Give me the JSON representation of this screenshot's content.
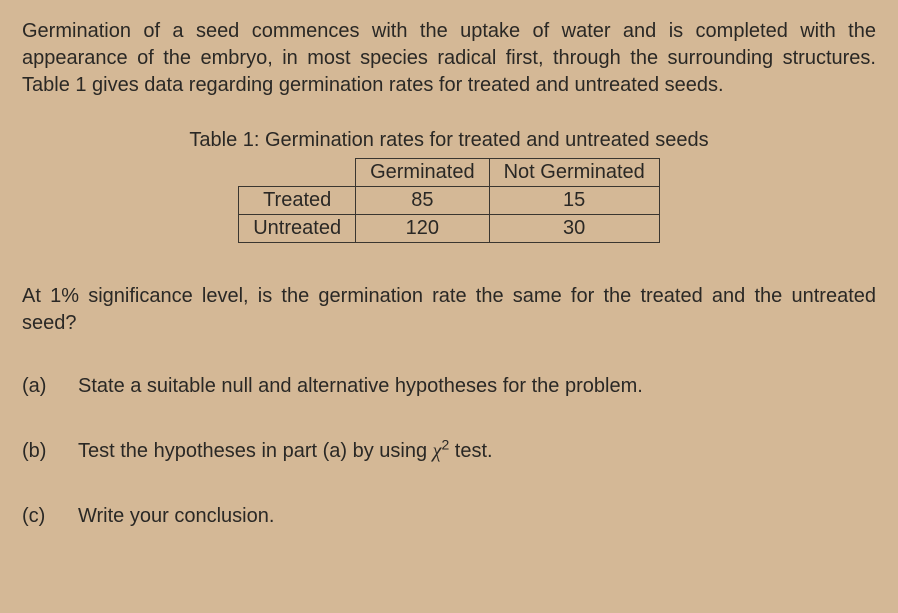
{
  "intro": "Germination of a seed commences with the uptake of water and is completed with the appearance of the embryo, in most species radical first, through the surrounding structures. Table 1 gives data regarding germination rates for treated and untreated seeds.",
  "table": {
    "caption": "Table 1: Germination rates for treated and untreated seeds",
    "columns": [
      "Germinated",
      "Not Germinated"
    ],
    "rows": [
      {
        "label": "Treated",
        "cells": [
          "85",
          "15"
        ]
      },
      {
        "label": "Untreated",
        "cells": [
          "120",
          "30"
        ]
      }
    ],
    "border_color": "#3a3630",
    "font_size": 20
  },
  "question": "At 1% significance level, is the germination rate the same for the treated and the untreated seed?",
  "parts": {
    "a": {
      "label": "(a)",
      "text": "State a suitable null and alternative hypotheses for the problem."
    },
    "b": {
      "label": "(b)",
      "text_prefix": "Test the hypotheses in part (a) by using ",
      "chi_symbol": "χ",
      "chi_exp": "2",
      "text_suffix": " test."
    },
    "c": {
      "label": "(c)",
      "text": "Write your conclusion."
    }
  },
  "colors": {
    "background": "#d4b896",
    "text": "#2a2825"
  },
  "typography": {
    "body_fontsize": 20,
    "line_height": 1.35
  }
}
